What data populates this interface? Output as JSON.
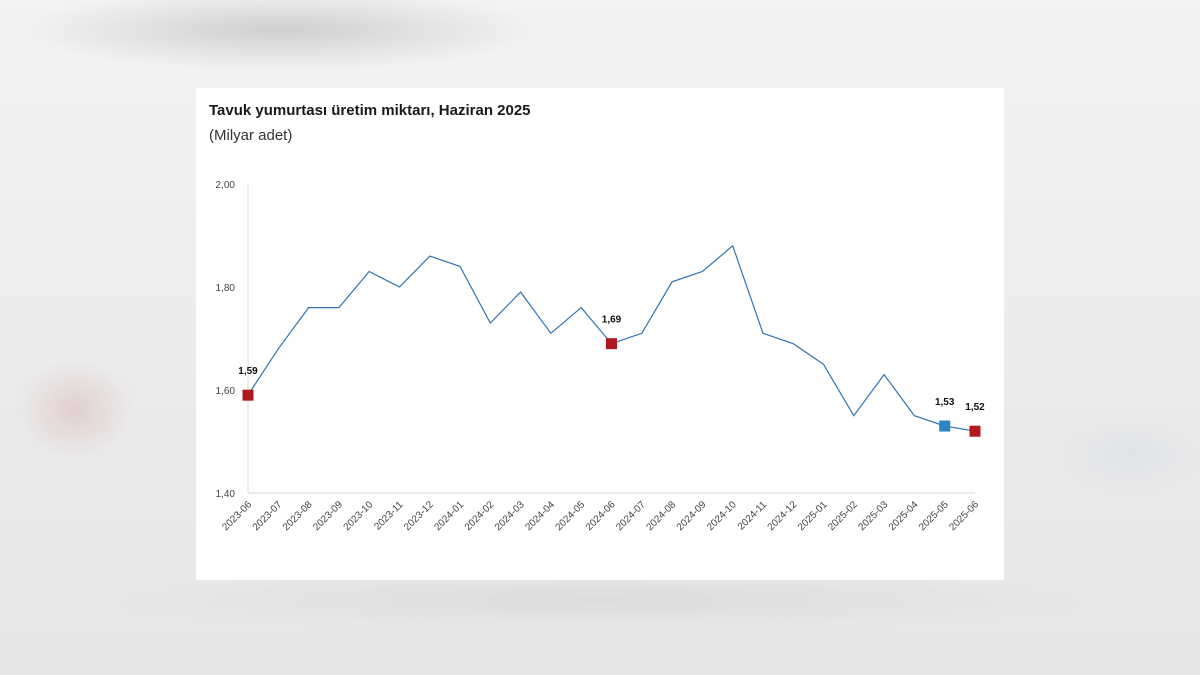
{
  "chart_data": {
    "type": "line",
    "title": "Tavuk yumurtası üretim miktarı, Haziran 2025",
    "subtitle": "(Milyar adet)",
    "xlabel": "",
    "ylabel": "",
    "ylim": [
      1.4,
      2.0
    ],
    "yticks": [
      1.4,
      1.6,
      1.8,
      2.0
    ],
    "ytick_labels": [
      "1,40",
      "1,60",
      "1,80",
      "2,00"
    ],
    "grid": false,
    "categories": [
      "2023-06",
      "2023-07",
      "2023-08",
      "2023-09",
      "2023-10",
      "2023-11",
      "2023-12",
      "2024-01",
      "2024-02",
      "2024-03",
      "2024-04",
      "2024-05",
      "2024-06",
      "2024-07",
      "2024-08",
      "2024-09",
      "2024-10",
      "2024-11",
      "2024-12",
      "2025-01",
      "2025-02",
      "2025-03",
      "2025-04",
      "2025-05",
      "2025-06"
    ],
    "series": [
      {
        "values": [
          1.59,
          1.68,
          1.76,
          1.76,
          1.83,
          1.8,
          1.86,
          1.84,
          1.73,
          1.79,
          1.71,
          1.76,
          1.69,
          1.71,
          1.81,
          1.83,
          1.88,
          1.71,
          1.69,
          1.65,
          1.55,
          1.63,
          1.55,
          1.53,
          1.52
        ],
        "color": "#2f73b0"
      }
    ],
    "highlights": [
      {
        "index": 0,
        "label": "1,59",
        "color": "#b01a1f"
      },
      {
        "index": 12,
        "label": "1,69",
        "color": "#b01a1f"
      },
      {
        "index": 23,
        "label": "1,53",
        "color": "#2e86c1"
      },
      {
        "index": 24,
        "label": "1,52",
        "color": "#b01a1f"
      }
    ]
  }
}
